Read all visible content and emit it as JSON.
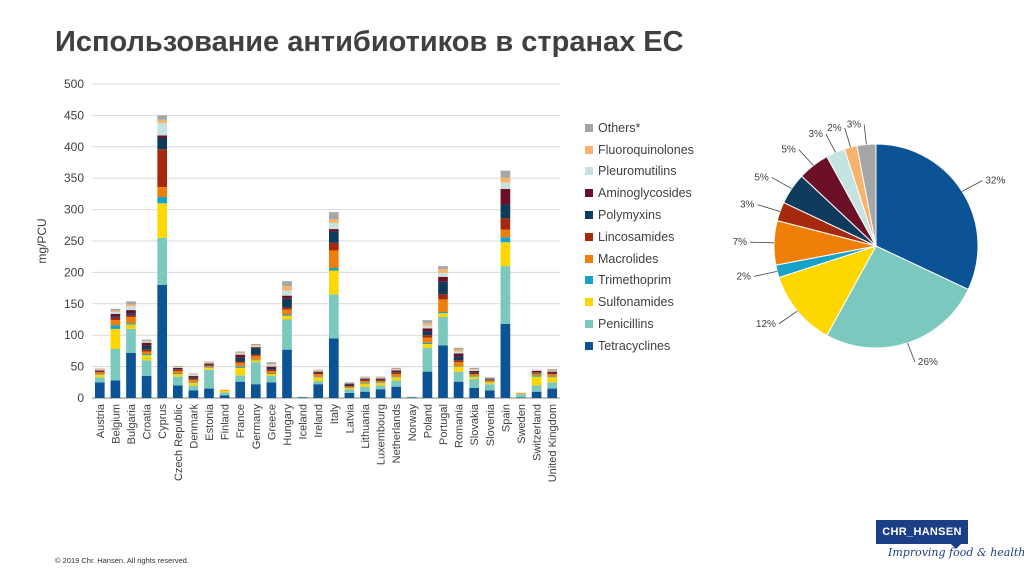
{
  "page": {
    "title": "Использование антибиотиков в странах ЕС",
    "footer": "© 2019 Chr. Hansen. All rights reserved."
  },
  "logo": {
    "brand": "CHR_HANSEN",
    "tagline": "Improving food & health",
    "color": "#1b3f87"
  },
  "chart_data": [
    {
      "type": "bar",
      "stacked": true,
      "ylabel": "mg/PCU",
      "ylim": [
        0,
        500
      ],
      "yticks": [
        0,
        50,
        100,
        150,
        200,
        250,
        300,
        350,
        400,
        450,
        500
      ],
      "grid": true,
      "categories": [
        "Austria",
        "Belgium",
        "Bulgaria",
        "Croatia",
        "Cyprus",
        "Czech Republic",
        "Denmark",
        "Estonia",
        "Finland",
        "France",
        "Germany",
        "Greece",
        "Hungary",
        "Iceland",
        "Ireland",
        "Italy",
        "Latvia",
        "Lithuania",
        "Luxembourg",
        "Netherlands",
        "Norway",
        "Poland",
        "Portugal",
        "Romania",
        "Slovakia",
        "Slovenia",
        "Spain",
        "Sweden",
        "Switzerland",
        "United Kingdom"
      ],
      "series": [
        {
          "name": "Tetracyclines",
          "color": "#0b5394",
          "values": [
            25,
            28,
            72,
            35,
            180,
            20,
            12,
            15,
            4,
            26,
            22,
            25,
            77,
            1,
            22,
            95,
            8,
            10,
            14,
            18,
            1,
            42,
            84,
            26,
            16,
            12,
            118,
            1,
            10,
            15
          ]
        },
        {
          "name": "Penicillins",
          "color": "#7bc8bf",
          "values": [
            8,
            50,
            38,
            25,
            75,
            14,
            8,
            30,
            5,
            10,
            35,
            10,
            48,
            1,
            5,
            70,
            6,
            8,
            6,
            10,
            1,
            38,
            45,
            16,
            14,
            10,
            92,
            5,
            10,
            10
          ]
        },
        {
          "name": "Sulfonamides",
          "color": "#ffd700",
          "values": [
            4,
            32,
            7,
            8,
            55,
            4,
            4,
            3,
            3,
            12,
            3,
            3,
            6,
            0,
            6,
            38,
            2,
            5,
            4,
            5,
            0,
            6,
            6,
            8,
            4,
            3,
            38,
            1,
            14,
            8
          ]
        },
        {
          "name": "Trimethoprim",
          "color": "#17a2c8",
          "values": [
            1,
            6,
            2,
            2,
            10,
            1,
            1,
            1,
            0,
            2,
            1,
            1,
            2,
            0,
            1,
            4,
            0,
            1,
            1,
            1,
            0,
            2,
            2,
            1,
            1,
            1,
            8,
            0,
            2,
            1
          ]
        },
        {
          "name": "Macrolides",
          "color": "#f07f09",
          "values": [
            3,
            8,
            10,
            4,
            16,
            4,
            4,
            2,
            1,
            6,
            6,
            4,
            8,
            0,
            4,
            28,
            2,
            3,
            2,
            4,
            0,
            8,
            20,
            6,
            3,
            2,
            12,
            1,
            3,
            4
          ]
        },
        {
          "name": "Lincosamides",
          "color": "#a52a0d",
          "values": [
            1,
            4,
            3,
            3,
            60,
            2,
            2,
            1,
            0,
            2,
            2,
            2,
            3,
            0,
            1,
            12,
            1,
            1,
            1,
            2,
            0,
            4,
            8,
            3,
            1,
            1,
            18,
            0,
            1,
            1
          ]
        },
        {
          "name": "Polymyxins",
          "color": "#0e3b5c",
          "values": [
            0,
            2,
            3,
            6,
            18,
            1,
            2,
            1,
            0,
            6,
            10,
            2,
            14,
            0,
            1,
            18,
            2,
            1,
            1,
            1,
            0,
            6,
            20,
            6,
            2,
            1,
            22,
            0,
            1,
            1
          ]
        },
        {
          "name": "Aminoglycosides",
          "color": "#6b1027",
          "values": [
            2,
            4,
            5,
            5,
            4,
            2,
            2,
            2,
            0,
            5,
            2,
            3,
            5,
            0,
            2,
            4,
            2,
            2,
            2,
            3,
            0,
            5,
            8,
            5,
            2,
            1,
            25,
            0,
            2,
            2
          ]
        },
        {
          "name": "Pleuromutilins",
          "color": "#c5e4e1",
          "values": [
            1,
            3,
            6,
            2,
            20,
            1,
            2,
            1,
            0,
            2,
            2,
            3,
            8,
            0,
            1,
            10,
            1,
            1,
            1,
            1,
            0,
            4,
            6,
            3,
            2,
            1,
            10,
            1,
            1,
            1
          ]
        },
        {
          "name": "Fluoroquinolones",
          "color": "#f7b36b",
          "values": [
            1,
            2,
            3,
            1,
            5,
            1,
            1,
            1,
            0,
            1,
            1,
            1,
            7,
            0,
            1,
            6,
            0,
            1,
            1,
            1,
            0,
            4,
            6,
            3,
            1,
            0,
            8,
            0,
            0,
            1
          ]
        },
        {
          "name": "Others*",
          "color": "#a6a6a6",
          "values": [
            1,
            3,
            5,
            2,
            7,
            1,
            1,
            1,
            0,
            2,
            2,
            3,
            8,
            0,
            1,
            11,
            1,
            1,
            1,
            2,
            0,
            5,
            5,
            3,
            2,
            1,
            11,
            0,
            1,
            2
          ]
        }
      ]
    },
    {
      "type": "pie",
      "categories": [
        "Tetracyclines",
        "Penicillins",
        "Sulfonamides",
        "Trimethoprim",
        "Macrolides",
        "Lincosamides",
        "Polymyxins",
        "Aminoglycosides",
        "Pleuromutilins",
        "Fluoroquinolones",
        "Others*"
      ],
      "values": [
        32,
        26,
        12,
        2,
        7,
        3,
        5,
        5,
        3,
        2,
        3
      ],
      "labels": [
        "32%",
        "26%",
        "12%",
        "2%",
        "7%",
        "3%",
        "5%",
        "5%",
        "3%",
        "2%",
        "3%"
      ],
      "colors": [
        "#0b5394",
        "#7bc8bf",
        "#ffd700",
        "#17a2c8",
        "#f07f09",
        "#a52a0d",
        "#0e3b5c",
        "#6b1027",
        "#c5e4e1",
        "#f7b36b",
        "#a6a6a6"
      ]
    }
  ]
}
